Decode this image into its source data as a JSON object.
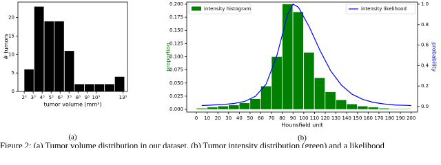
{
  "chart_data": [
    {
      "type": "histogram",
      "subcaption": "(a)",
      "xlabel": "tumor volume (mm³)",
      "ylabel": "# tumors",
      "xscale": "cube-root",
      "color": "#000000",
      "bins": [
        8,
        30,
        76,
        154,
        272,
        439,
        663,
        953,
        1317,
        1763,
        2300
      ],
      "values": [
        6,
        23,
        19,
        19,
        11,
        2,
        2,
        2,
        2,
        4
      ],
      "xlim": [
        2.2,
        2460
      ],
      "ylim": [
        0,
        24.2
      ],
      "xticks": [
        {
          "value": 8,
          "label": "2³"
        },
        {
          "value": 27,
          "label": "3³"
        },
        {
          "value": 64,
          "label": "4³"
        },
        {
          "value": 125,
          "label": "5³"
        },
        {
          "value": 216,
          "label": "6³"
        },
        {
          "value": 343,
          "label": "7³"
        },
        {
          "value": 512,
          "label": "8³"
        },
        {
          "value": 729,
          "label": "9³"
        },
        {
          "value": 1000,
          "label": "10³"
        },
        {
          "value": 2197,
          "label": "13³"
        }
      ],
      "yticks": [
        0,
        5,
        10,
        15,
        20
      ]
    },
    {
      "type": "histogram",
      "subcaption": "(b)",
      "xlabel": "Hounsfield unit",
      "ylabel": "proportion",
      "y2label": "probability",
      "legend": "top",
      "bins": [
        0,
        10,
        20,
        30,
        40,
        50,
        60,
        70,
        80,
        90,
        100,
        110,
        120,
        130,
        140,
        150,
        160,
        170,
        180,
        190,
        200
      ],
      "series": [
        {
          "name": "intensity histogram",
          "color": "#008000",
          "values": [
            0.002,
            0.004,
            0.006,
            0.008,
            0.012,
            0.02,
            0.044,
            0.1,
            0.2,
            0.185,
            0.108,
            0.06,
            0.033,
            0.018,
            0.01,
            0.006,
            0.004,
            0.002,
            0.001,
            0.001
          ]
        },
        {
          "name": "intensity likelihood",
          "color": "#0000ff",
          "type": "line",
          "axis": "y2",
          "x": [
            5,
            15,
            25,
            35,
            45,
            55,
            65,
            75,
            85,
            90,
            95,
            105,
            115,
            125,
            135,
            145,
            155,
            165,
            175,
            185,
            195,
            200
          ],
          "values": [
            0.01,
            0.015,
            0.02,
            0.03,
            0.05,
            0.1,
            0.22,
            0.5,
            0.9,
            1.0,
            0.97,
            0.78,
            0.55,
            0.35,
            0.21,
            0.12,
            0.07,
            0.04,
            0.025,
            0.015,
            0.012,
            0.01
          ]
        }
      ],
      "xlim": [
        -9,
        206
      ],
      "ylim": [
        -0.0052,
        0.2039
      ],
      "y2lim": [
        -0.054,
        1.02
      ],
      "xticks": [
        0,
        10,
        20,
        30,
        40,
        50,
        60,
        70,
        80,
        90,
        100,
        110,
        120,
        130,
        140,
        150,
        160,
        170,
        180,
        190,
        200
      ],
      "yticks": [
        {
          "value": 0,
          "label": "0.000"
        },
        {
          "value": 0.025,
          "label": "0.025"
        },
        {
          "value": 0.05,
          "label": "0.050"
        },
        {
          "value": 0.075,
          "label": "0.075"
        },
        {
          "value": 0.1,
          "label": "0.100"
        },
        {
          "value": 0.125,
          "label": "0.125"
        },
        {
          "value": 0.15,
          "label": "0.150"
        },
        {
          "value": 0.175,
          "label": "0.175"
        },
        {
          "value": 0.2,
          "label": "0.200"
        }
      ],
      "y2ticks": [
        {
          "value": 0,
          "label": "0.0"
        },
        {
          "value": 0.2,
          "label": "0.2"
        },
        {
          "value": 0.4,
          "label": "0.4"
        },
        {
          "value": 0.6,
          "label": "0.6"
        },
        {
          "value": 0.8,
          "label": "0.8"
        },
        {
          "value": 1,
          "label": "1.0"
        }
      ]
    }
  ],
  "caption": "Figure 2: (a) Tumor volume distribution in our dataset. (b) Tumor intensity distribution (green) and a likelihood"
}
